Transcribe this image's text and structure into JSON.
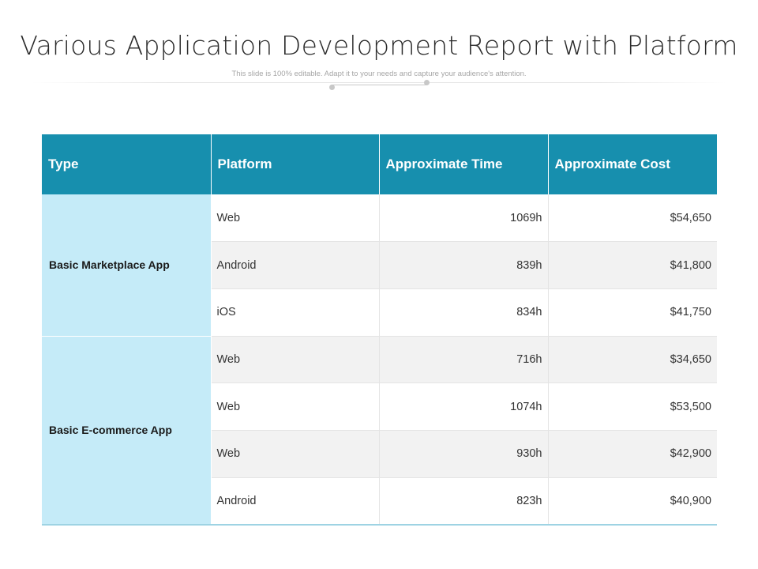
{
  "title": "Various Application Development Report with Platform",
  "subtitle": "This slide is 100% editable. Adapt it to your needs and capture your audience's attention.",
  "table": {
    "headers": [
      "Type",
      "Platform",
      "Approximate Time",
      "Approximate Cost"
    ],
    "groups": [
      {
        "type": "Basic Marketplace App",
        "rows": [
          {
            "platform": "Web",
            "time": "1069h",
            "cost": "$54,650"
          },
          {
            "platform": "Android",
            "time": "839h",
            "cost": "$41,800"
          },
          {
            "platform": "iOS",
            "time": "834h",
            "cost": "$41,750"
          }
        ]
      },
      {
        "type": "Basic E-commerce App",
        "rows": [
          {
            "platform": "Web",
            "time": "716h",
            "cost": "$34,650"
          },
          {
            "platform": "Web",
            "time": "1074h",
            "cost": "$53,500"
          },
          {
            "platform": "Web",
            "time": "930h",
            "cost": "$42,900"
          },
          {
            "platform": "Android",
            "time": "823h",
            "cost": "$40,900"
          }
        ]
      }
    ]
  },
  "colors": {
    "header_bg": "#178fae",
    "type_cell_bg": "#c5ebf8",
    "row_alt_bg": "#f2f2f2"
  }
}
